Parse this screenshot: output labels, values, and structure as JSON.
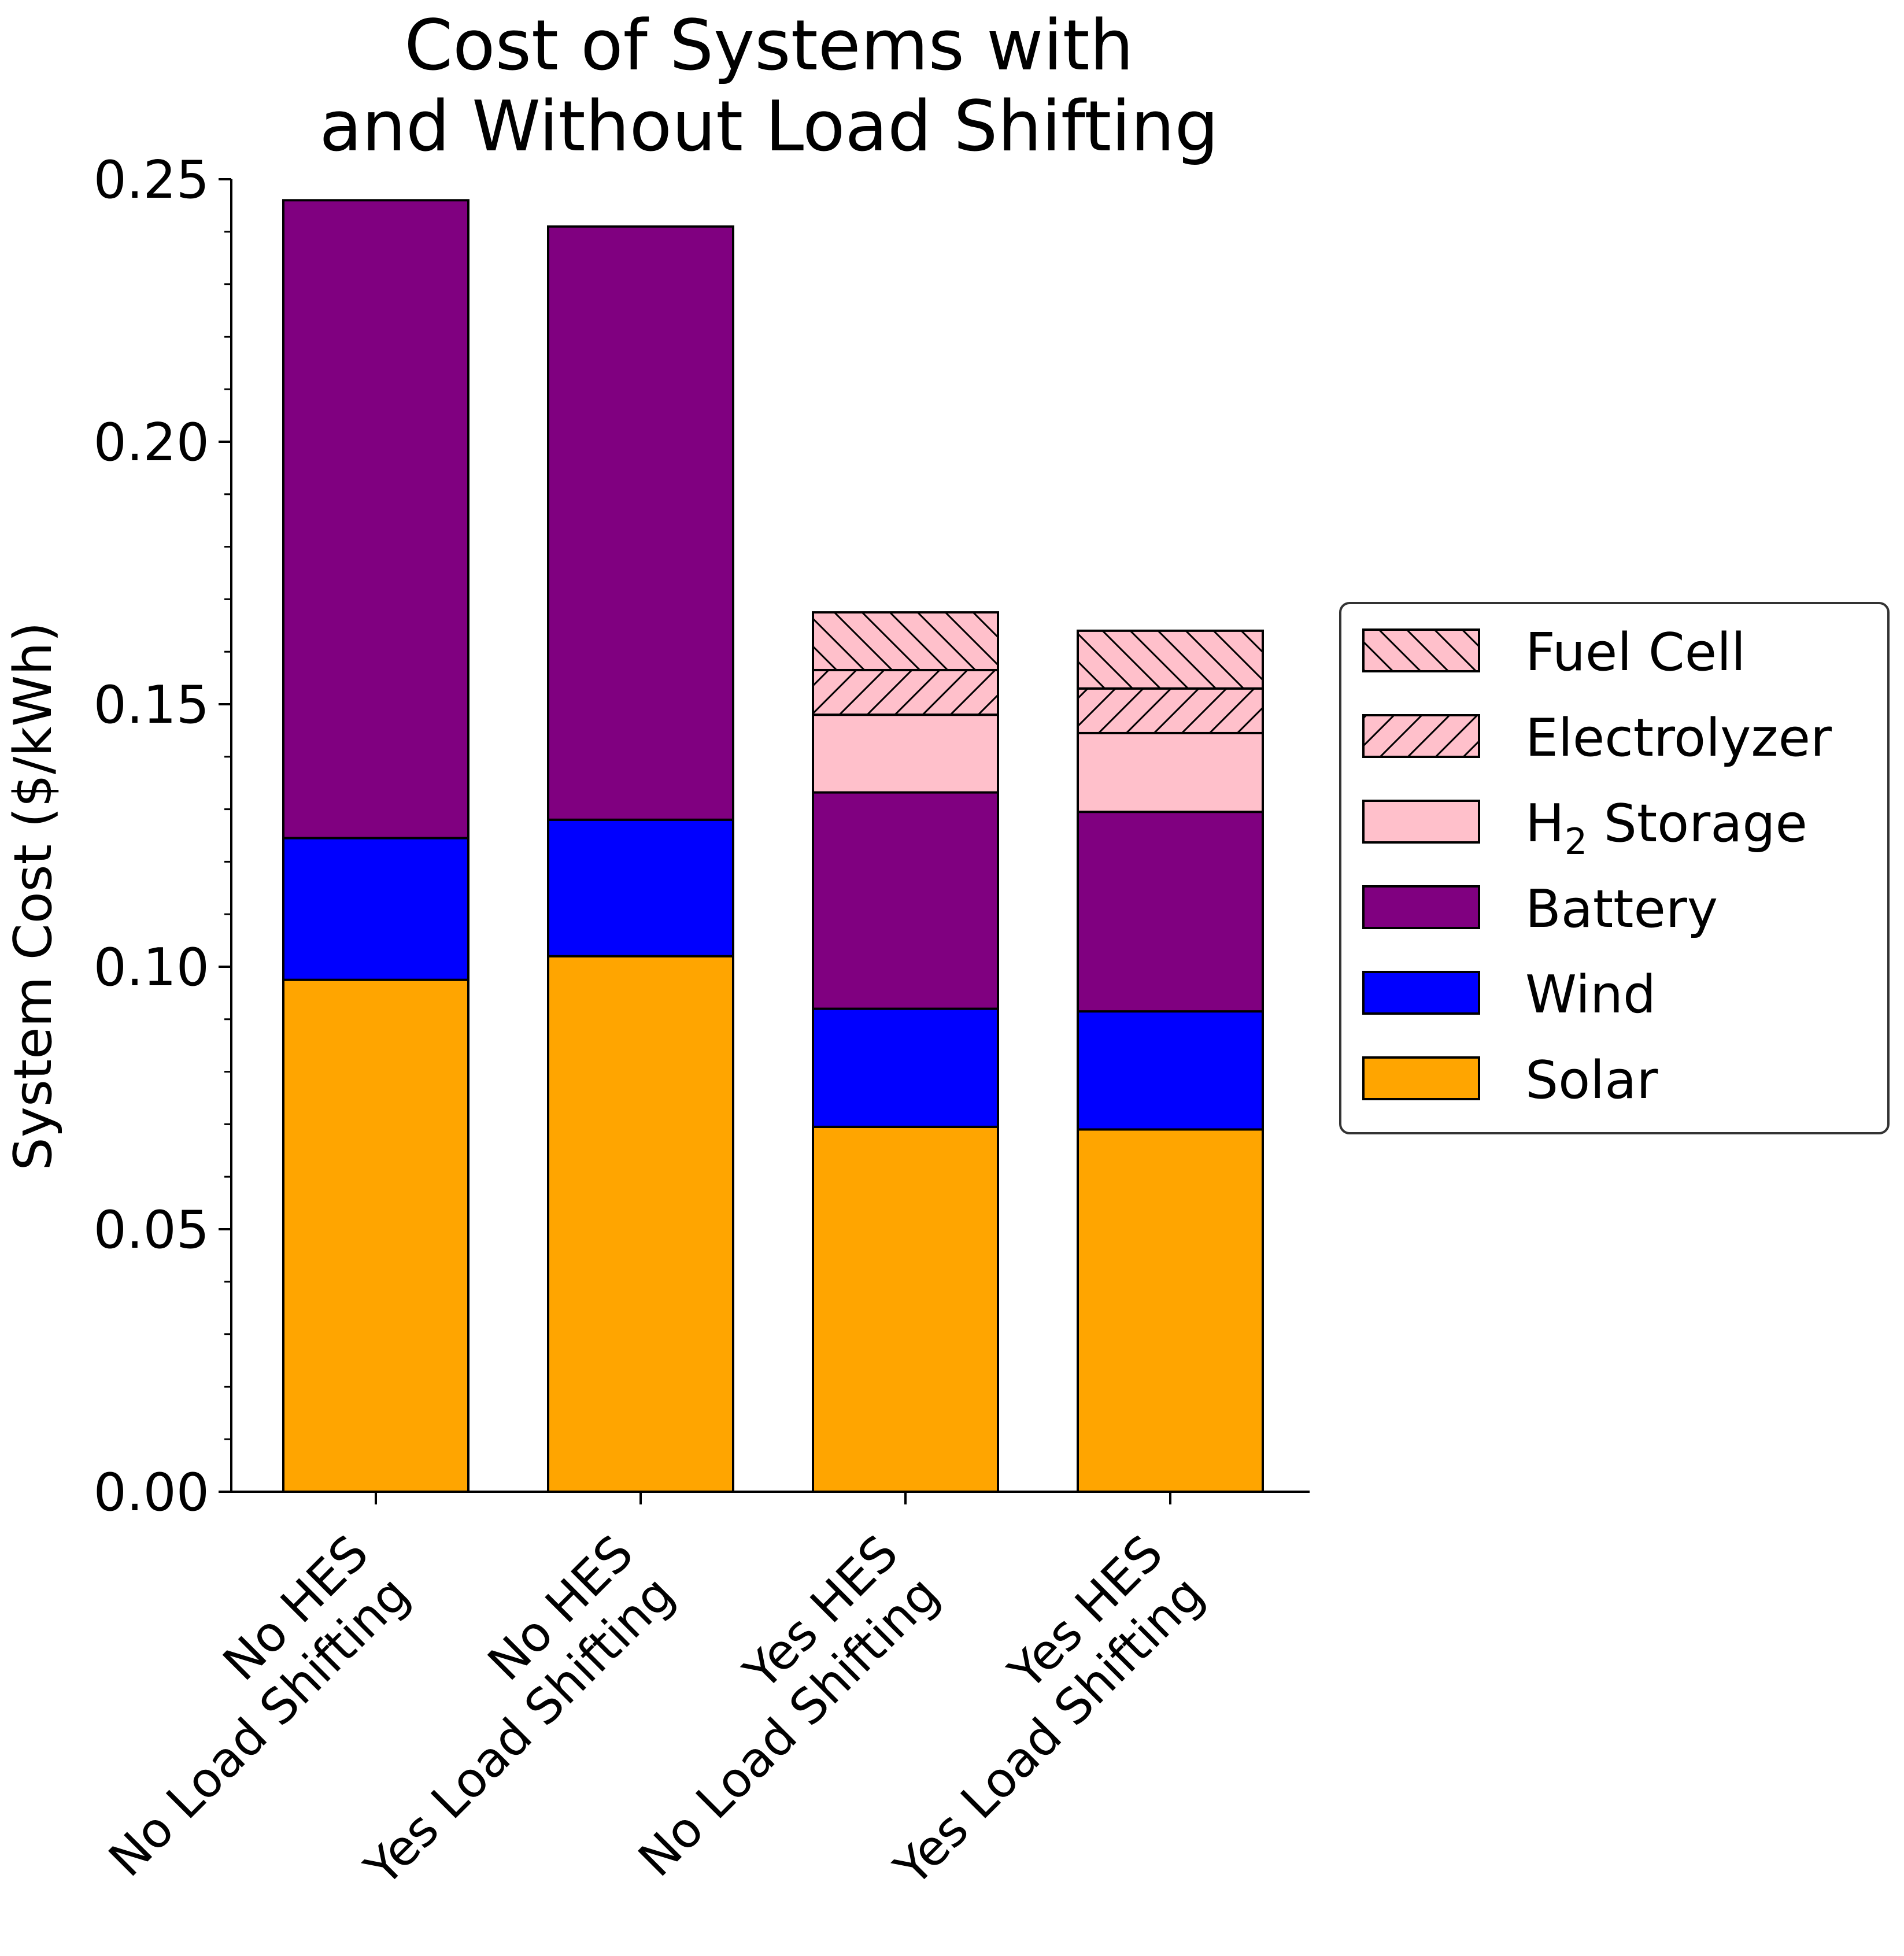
{
  "chart_data": {
    "type": "bar",
    "stacked": true,
    "title": "Cost of Systems with\nand Without Load Shifting",
    "ylabel": "System Cost ($/kWh)",
    "xlabel": "",
    "ylim": [
      0,
      0.25
    ],
    "yticks": [
      "0.00",
      "0.05",
      "0.10",
      "0.15",
      "0.20",
      "0.25"
    ],
    "yticks_values": [
      0,
      0.05,
      0.1,
      0.15,
      0.2,
      0.25
    ],
    "categories": [
      [
        "No HES",
        "No Load Shifting"
      ],
      [
        "No HES",
        "Yes Load Shifting"
      ],
      [
        "Yes HES",
        "No Load Shifting"
      ],
      [
        "Yes HES",
        "Yes Load Shifting"
      ]
    ],
    "series": [
      {
        "name": "Solar",
        "color": "#FFA500",
        "hatch": "none",
        "values": [
          0.0975,
          0.102,
          0.0695,
          0.069
        ]
      },
      {
        "name": "Wind",
        "color": "#0000FF",
        "hatch": "none",
        "values": [
          0.027,
          0.026,
          0.0225,
          0.0225
        ]
      },
      {
        "name": "Battery",
        "color": "#800080",
        "hatch": "none",
        "values": [
          0.1215,
          0.113,
          0.0412,
          0.038
        ]
      },
      {
        "name": "H2 Storage",
        "color": "#FFC0CB",
        "hatch": "none",
        "values": [
          0,
          0,
          0.0148,
          0.015
        ]
      },
      {
        "name": "Electrolyzer",
        "color": "#FFC0CB",
        "hatch": "forward",
        "values": [
          0,
          0,
          0.0085,
          0.0085
        ]
      },
      {
        "name": "Fuel Cell",
        "color": "#FFC0CB",
        "hatch": "back",
        "values": [
          0,
          0,
          0.011,
          0.011
        ]
      }
    ],
    "legend": {
      "placement": "right",
      "items": [
        {
          "label": "Fuel Cell",
          "series": "Fuel Cell"
        },
        {
          "label": "Electrolyzer",
          "series": "Electrolyzer"
        },
        {
          "label_main": "H",
          "label_sub": "2",
          "label_rest": " Storage",
          "series": "H2 Storage"
        },
        {
          "label": "Battery",
          "series": "Battery"
        },
        {
          "label": "Wind",
          "series": "Wind"
        },
        {
          "label": "Solar",
          "series": "Solar"
        }
      ]
    },
    "grid": false
  }
}
